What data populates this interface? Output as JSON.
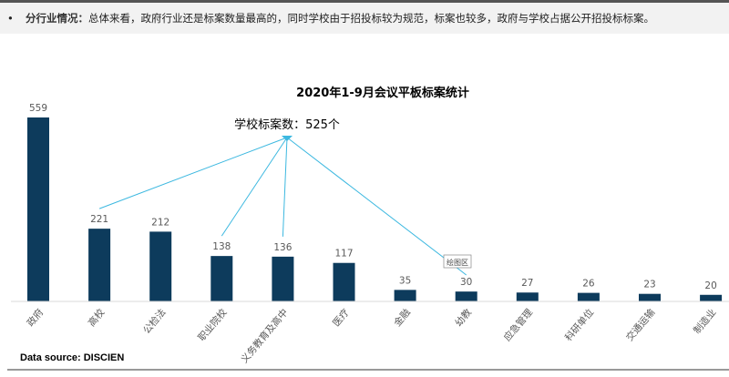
{
  "header": {
    "bullet": "•",
    "label": "分行业情况：",
    "text": "总体来看，政府行业还是标案数量最高的，同时学校由于招投标较为规范，标案也较多，政府与学校占据公开招投标标案。"
  },
  "chart_data": {
    "type": "bar",
    "title": "2020年1-9月会议平板标案统计",
    "categories": [
      "政府",
      "高校",
      "公检法",
      "职业院校",
      "义务教育及高中",
      "医疗",
      "金融",
      "幼教",
      "应急管理",
      "科研单位",
      "交通运输",
      "制造业"
    ],
    "values": [
      559,
      221,
      212,
      138,
      136,
      117,
      35,
      30,
      27,
      26,
      23,
      20
    ],
    "bar_color": "#0d3b5c",
    "annotation": {
      "text": "学校标案数：525个",
      "targets": [
        "高校",
        "职业院校",
        "义务教育及高中",
        "幼教"
      ],
      "color": "#3cb8e0"
    },
    "tooltip": "绘图区",
    "grid": false,
    "legend": "none"
  },
  "source": "Data source: DISCIEN"
}
